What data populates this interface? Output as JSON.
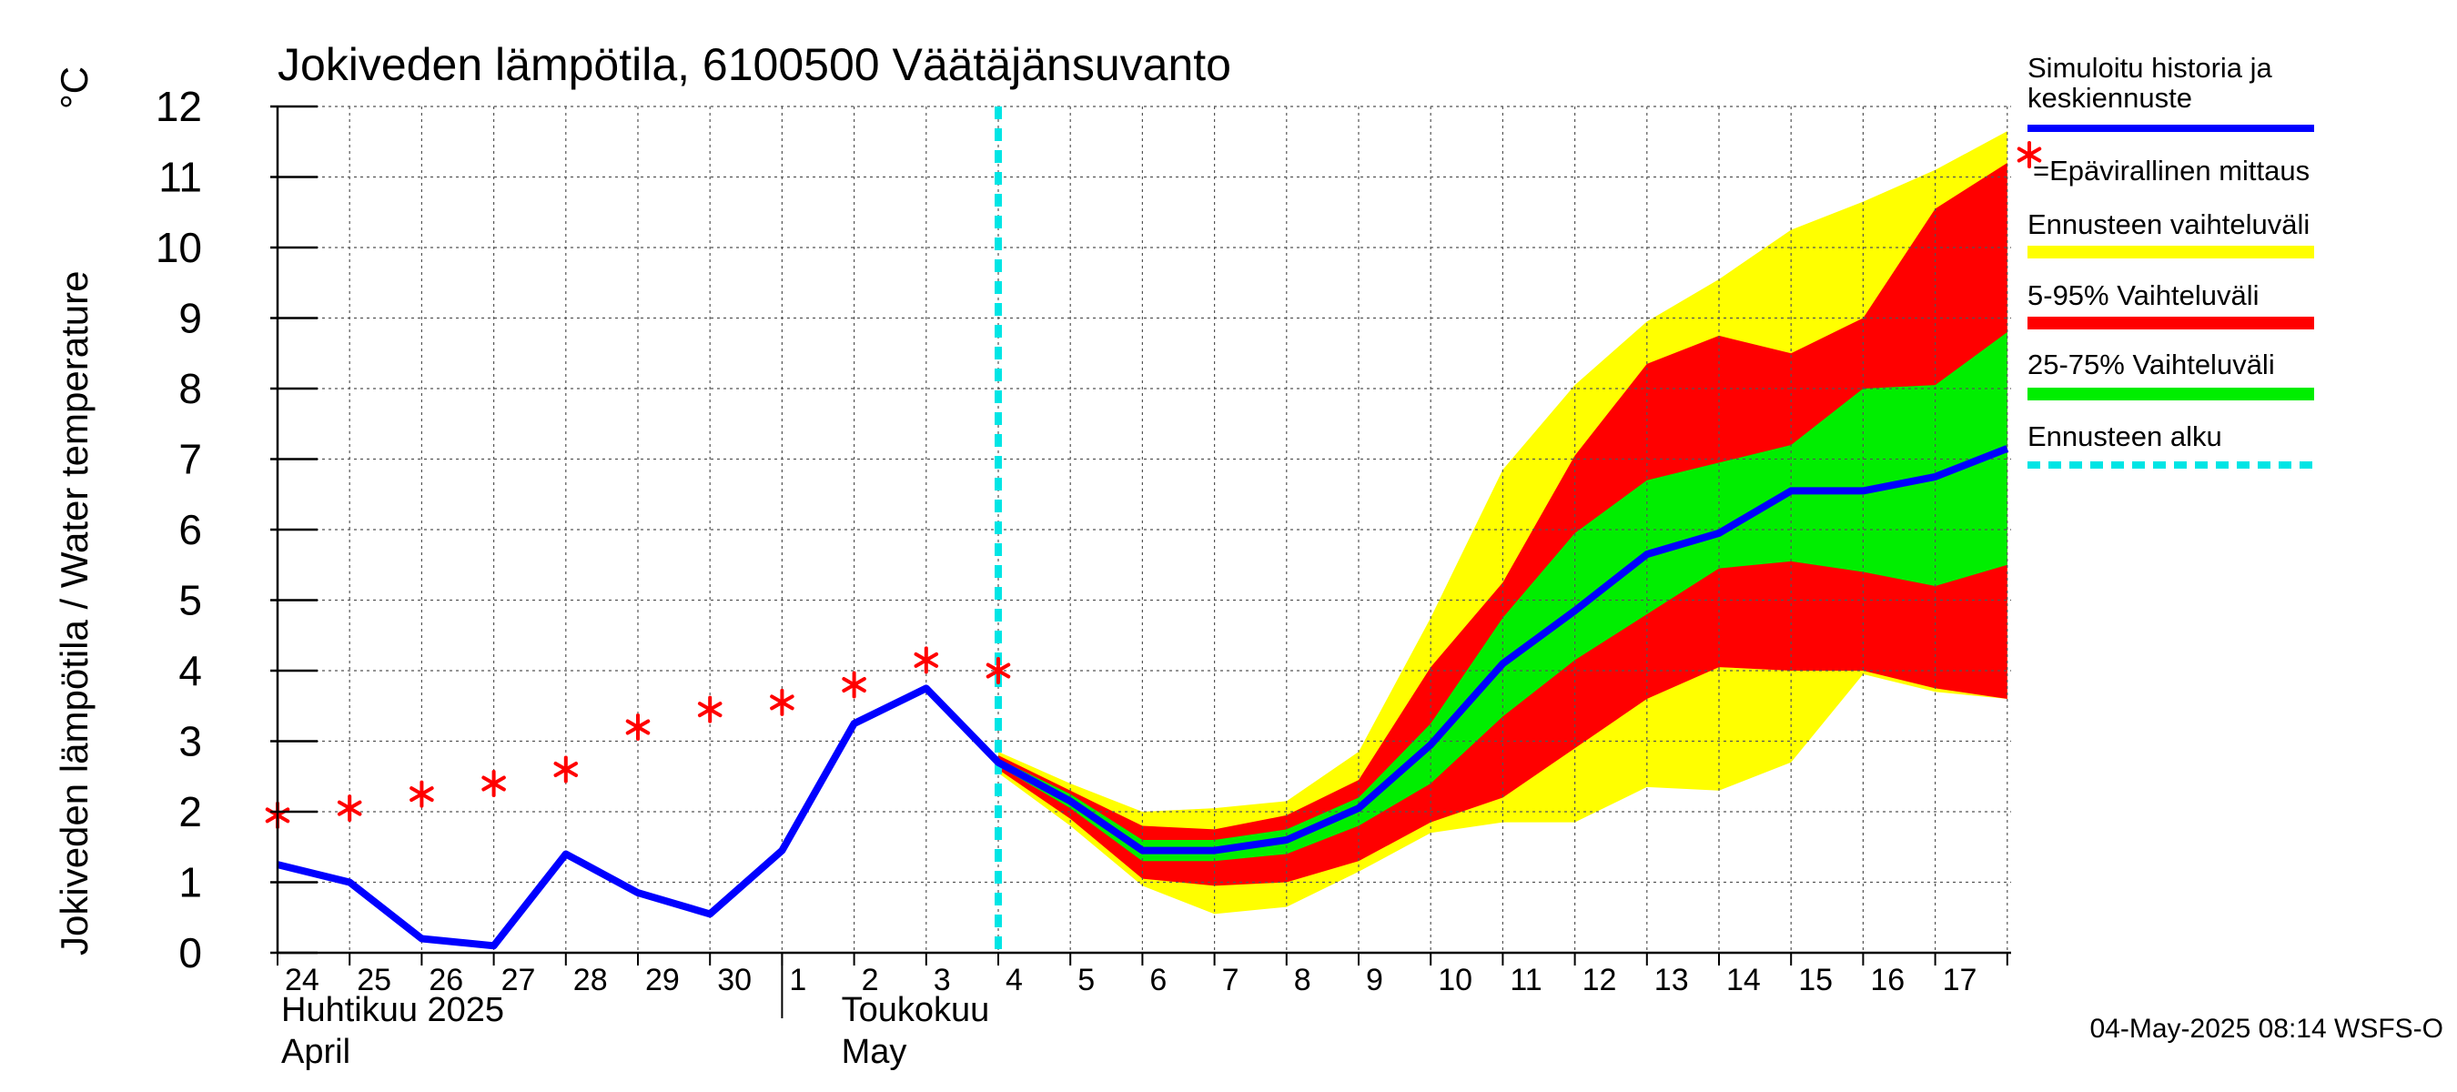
{
  "chart_data": {
    "type": "line",
    "title": "Jokiveden lämpötila, 6100500 Väätäjänsuvanto",
    "ylabel": "Jokiveden lämpötila / Water temperature",
    "yunit": "°C",
    "ylim": [
      0,
      12
    ],
    "yticks": [
      0,
      1,
      2,
      3,
      4,
      5,
      6,
      7,
      8,
      9,
      10,
      11,
      12
    ],
    "x_day_labels": [
      "24",
      "25",
      "26",
      "27",
      "28",
      "29",
      "30",
      "1",
      "2",
      "3",
      "4",
      "5",
      "6",
      "7",
      "8",
      "9",
      "10",
      "11",
      "12",
      "13",
      "14",
      "15",
      "16",
      "17"
    ],
    "month_labels": [
      {
        "fi": "Huhtikuu  2025",
        "en": "April"
      },
      {
        "fi": "Toukokuu",
        "en": "May"
      }
    ],
    "grid": true,
    "forecast_start_date": "2025-05-04",
    "series": [
      {
        "name": "Simuloitu historia ja keskiennuste",
        "color": "#0000ff",
        "x": [
          "2025-04-24",
          "2025-04-25",
          "2025-04-26",
          "2025-04-27",
          "2025-04-28",
          "2025-04-29",
          "2025-04-30",
          "2025-05-01",
          "2025-05-02",
          "2025-05-03",
          "2025-05-04",
          "2025-05-05",
          "2025-05-06",
          "2025-05-07",
          "2025-05-08",
          "2025-05-09",
          "2025-05-10",
          "2025-05-11",
          "2025-05-12",
          "2025-05-13",
          "2025-05-14",
          "2025-05-15",
          "2025-05-16",
          "2025-05-17",
          "2025-05-18"
        ],
        "values": [
          1.25,
          1.0,
          0.2,
          0.1,
          1.4,
          0.85,
          0.55,
          1.45,
          3.25,
          3.75,
          2.7,
          2.15,
          1.45,
          1.45,
          1.6,
          2.05,
          2.95,
          4.1,
          4.85,
          5.65,
          5.95,
          6.55,
          6.55,
          6.75,
          7.15
        ]
      },
      {
        "name": "=Epävirallinen mittaus",
        "color": "#ff0000",
        "x": [
          "2025-04-24",
          "2025-04-25",
          "2025-04-26",
          "2025-04-27",
          "2025-04-28",
          "2025-04-29",
          "2025-04-30",
          "2025-05-01",
          "2025-05-02",
          "2025-05-03",
          "2025-05-04"
        ],
        "values": [
          1.95,
          2.05,
          2.25,
          2.4,
          2.6,
          3.2,
          3.45,
          3.55,
          3.8,
          4.15,
          4.0
        ]
      }
    ],
    "bands": [
      {
        "name": "Ennusteen vaihteluväli",
        "color": "#ffff00",
        "x": [
          "2025-05-04",
          "2025-05-05",
          "2025-05-06",
          "2025-05-07",
          "2025-05-08",
          "2025-05-09",
          "2025-05-10",
          "2025-05-11",
          "2025-05-12",
          "2025-05-13",
          "2025-05-14",
          "2025-05-15",
          "2025-05-16",
          "2025-05-17",
          "2025-05-18"
        ],
        "low": [
          2.55,
          1.8,
          0.95,
          0.55,
          0.65,
          1.15,
          1.7,
          1.85,
          1.85,
          2.35,
          2.3,
          2.7,
          3.95,
          3.7,
          3.6
        ],
        "high": [
          2.85,
          2.4,
          2.0,
          2.05,
          2.15,
          2.85,
          4.75,
          6.85,
          8.05,
          8.95,
          9.55,
          10.25,
          10.65,
          11.1,
          11.65
        ]
      },
      {
        "name": "5-95% Vaihteluväli",
        "color": "#ff0000",
        "x": [
          "2025-05-04",
          "2025-05-05",
          "2025-05-06",
          "2025-05-07",
          "2025-05-08",
          "2025-05-09",
          "2025-05-10",
          "2025-05-11",
          "2025-05-12",
          "2025-05-13",
          "2025-05-14",
          "2025-05-15",
          "2025-05-16",
          "2025-05-17",
          "2025-05-18"
        ],
        "low": [
          2.6,
          1.9,
          1.05,
          0.95,
          1.0,
          1.3,
          1.85,
          2.2,
          2.9,
          3.6,
          4.05,
          4.0,
          4.0,
          3.75,
          3.6
        ],
        "high": [
          2.8,
          2.3,
          1.8,
          1.75,
          1.95,
          2.45,
          4.05,
          5.25,
          7.05,
          8.35,
          8.75,
          8.5,
          9.0,
          10.55,
          11.2
        ]
      },
      {
        "name": "25-75% Vaihteluväli",
        "color": "#00ee00",
        "x": [
          "2025-05-04",
          "2025-05-05",
          "2025-05-06",
          "2025-05-07",
          "2025-05-08",
          "2025-05-09",
          "2025-05-10",
          "2025-05-11",
          "2025-05-12",
          "2025-05-13",
          "2025-05-14",
          "2025-05-15",
          "2025-05-16",
          "2025-05-17",
          "2025-05-18"
        ],
        "low": [
          2.65,
          2.05,
          1.3,
          1.3,
          1.4,
          1.8,
          2.4,
          3.35,
          4.15,
          4.8,
          5.45,
          5.55,
          5.4,
          5.2,
          5.5
        ],
        "high": [
          2.75,
          2.25,
          1.6,
          1.6,
          1.75,
          2.2,
          3.25,
          4.75,
          5.95,
          6.7,
          6.95,
          7.2,
          8.0,
          8.05,
          8.8
        ]
      }
    ],
    "legend": {
      "placement": "right",
      "items": [
        {
          "label_lines": [
            "Simuloitu historia ja",
            "keskiennuste"
          ],
          "color": "#0000ff",
          "kind": "line"
        },
        {
          "label_lines": [
            "=Epävirallinen mittaus"
          ],
          "color": "#ff0000",
          "kind": "star"
        },
        {
          "label_lines": [
            "Ennusteen vaihteluväli"
          ],
          "color": "#ffff00",
          "kind": "band"
        },
        {
          "label_lines": [
            "5-95% Vaihteluväli"
          ],
          "color": "#ff0000",
          "kind": "band"
        },
        {
          "label_lines": [
            "25-75% Vaihteluväli"
          ],
          "color": "#00ee00",
          "kind": "band"
        },
        {
          "label_lines": [
            "Ennusteen alku"
          ],
          "color": "#00e5e5",
          "kind": "dashed"
        }
      ]
    },
    "footer": "04-May-2025 08:14 WSFS-O"
  }
}
